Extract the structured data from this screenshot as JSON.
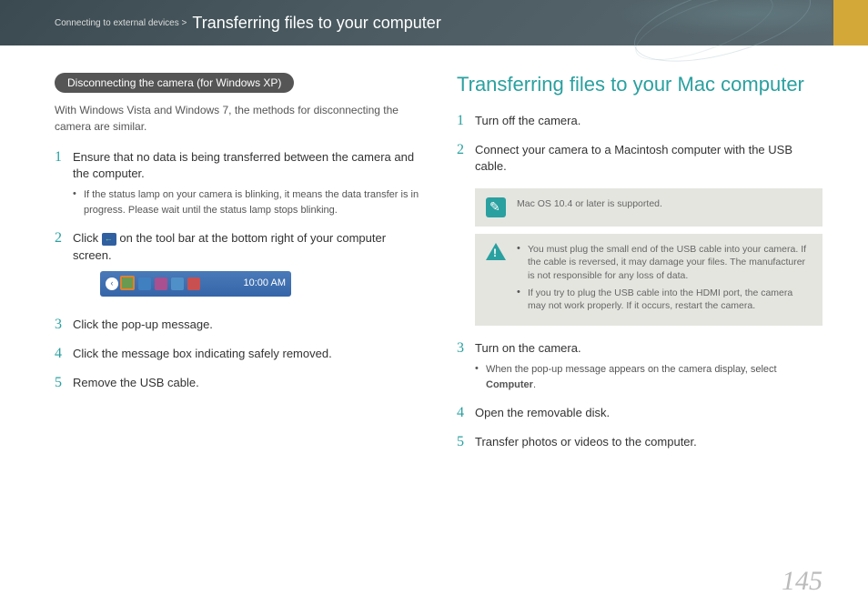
{
  "header": {
    "breadcrumb_prefix": "Connecting to external devices >",
    "breadcrumb_title": "Transferring files to your computer"
  },
  "colors": {
    "accent": "#2aa0a0",
    "header_bg": "#3a4a50",
    "accent_bar": "#d4a838",
    "pill_bg": "#555555",
    "note_bg": "#e5e5e0",
    "taskbar_bg": "#3565a8"
  },
  "left": {
    "pill": "Disconnecting the camera (for Windows XP)",
    "intro": "With Windows Vista and Windows 7, the methods for disconnecting the camera are similar.",
    "steps": [
      {
        "num": "1",
        "text": "Ensure that no data is being transferred between the camera and the computer.",
        "bullets": [
          "If the status lamp on your camera is blinking, it means the data transfer is in progress. Please wait until the status lamp stops blinking."
        ]
      },
      {
        "num": "2",
        "text_before": "Click ",
        "text_after": " on the tool bar at the bottom right of your computer screen."
      },
      {
        "num": "3",
        "text": "Click the pop-up message."
      },
      {
        "num": "4",
        "text": "Click the message box indicating safely removed."
      },
      {
        "num": "5",
        "text": "Remove the USB cable."
      }
    ],
    "taskbar": {
      "time": "10:00 AM",
      "icon_colors": [
        "#6a9a50",
        "#4080c0",
        "#a85090",
        "#5090c8",
        "#c85050"
      ]
    }
  },
  "right": {
    "title": "Transferring files to your Mac computer",
    "steps": [
      {
        "num": "1",
        "text": "Turn off the camera."
      },
      {
        "num": "2",
        "text": "Connect your camera to a Macintosh computer with the USB cable."
      },
      {
        "num": "3",
        "text": "Turn on the camera.",
        "bullets": [
          {
            "before": "When the pop-up message appears on the camera display, select ",
            "bold": "Computer",
            "after": "."
          }
        ]
      },
      {
        "num": "4",
        "text": "Open the removable disk."
      },
      {
        "num": "5",
        "text": "Transfer photos or videos to the computer."
      }
    ],
    "note": "Mac OS 10.4 or later is supported.",
    "warnings": [
      "You must plug the small end of the USB cable into your camera. If the cable is reversed, it may damage your files. The manufacturer is not responsible for any loss of data.",
      "If you try to plug the USB cable into the HDMI port, the camera may not work properly. If it occurs, restart the camera."
    ]
  },
  "page_number": "145"
}
